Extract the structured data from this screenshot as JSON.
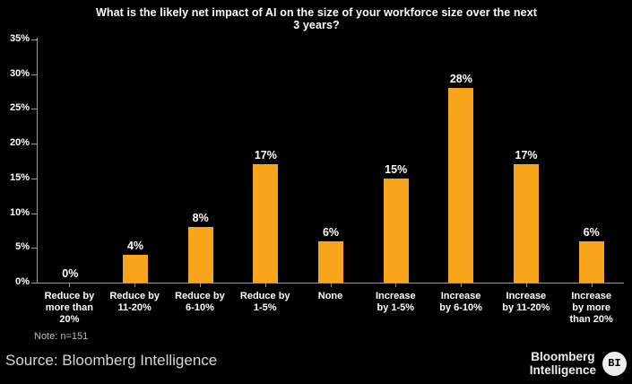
{
  "header": {
    "title_display": "What is the likely net impact of AI on the size of your workforce size over the next\n3 years?"
  },
  "chart_data": {
    "type": "bar",
    "title": "What is the likely net impact of AI on the size of your workforce size over the next 3 years?",
    "categories": [
      "Reduce by more than 20%",
      "Reduce by 11-20%",
      "Reduce by 6-10%",
      "Reduce by 1-5%",
      "None",
      "Increase by 1-5%",
      "Increase by 6-10%",
      "Increase by 11-20%",
      "Increase by more than 20%"
    ],
    "values": [
      0,
      4,
      8,
      17,
      6,
      15,
      28,
      17,
      6
    ],
    "value_labels": [
      "0%",
      "4%",
      "8%",
      "17%",
      "6%",
      "15%",
      "28%",
      "17%",
      "6%"
    ],
    "tick_labels_wrapped": [
      "Reduce by\nmore than\n20%",
      "Reduce by\n11-20%",
      "Reduce by\n6-10%",
      "Reduce by\n1-5%",
      "None",
      "Increase\nby 1-5%",
      "Increase\nby 6-10%",
      "Increase\nby 11-20%",
      "Increase\nby more\nthan 20%"
    ],
    "xlabel": "",
    "ylabel": "",
    "ylim": [
      0,
      35
    ],
    "yticks": [
      {
        "value": 0,
        "label": "0%"
      },
      {
        "value": 5,
        "label": "5%"
      },
      {
        "value": 10,
        "label": "10%"
      },
      {
        "value": 15,
        "label": "15%"
      },
      {
        "value": 20,
        "label": "20%"
      },
      {
        "value": 25,
        "label": "25%"
      },
      {
        "value": 30,
        "label": "30%"
      },
      {
        "value": 35,
        "label": "35%"
      }
    ],
    "grid": false,
    "legend": false,
    "bar_color": "#F9A51B"
  },
  "note": "Note: n=151",
  "source": "Source: Bloomberg Intelligence",
  "logo": {
    "line1": "Bloomberg",
    "line2": "Intelligence",
    "badge": "BI"
  },
  "colors": {
    "background": "#000000",
    "bar": "#F9A51B",
    "title_text": "#FFFFFF",
    "axis": "#9B9B9B",
    "note_text": "#BDBDBD",
    "source_text": "#D6D6D6",
    "logo_text": "#EDEDED"
  }
}
